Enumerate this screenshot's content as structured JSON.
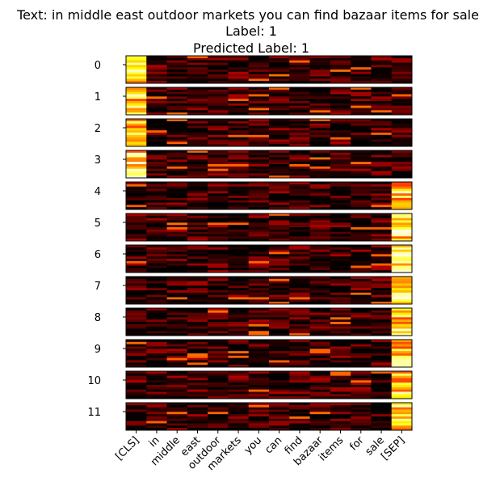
{
  "chart_data": {
    "type": "heatmap",
    "title_lines": [
      "Text: in middle east outdoor markets you can find bazaar items for sale",
      "Label: 1",
      "Predicted Label: 1"
    ],
    "tokens": [
      "[CLS]",
      "in",
      "middle",
      "east",
      "outdoor",
      "markets",
      "you",
      "can",
      "find",
      "bazaar",
      "items",
      "for",
      "sale",
      "[SEP]"
    ],
    "layers": [
      "0",
      "1",
      "2",
      "3",
      "4",
      "5",
      "6",
      "7",
      "8",
      "9",
      "10",
      "11"
    ],
    "heads_per_layer": 12,
    "colormap": "hot",
    "dominant_token_per_layer": [
      "[CLS]",
      "[CLS]",
      "[CLS]",
      "[CLS]",
      "[SEP]",
      "[SEP]",
      "[SEP]",
      "[SEP]",
      "[SEP]",
      "[SEP]",
      "[SEP]",
      "[SEP]"
    ]
  }
}
